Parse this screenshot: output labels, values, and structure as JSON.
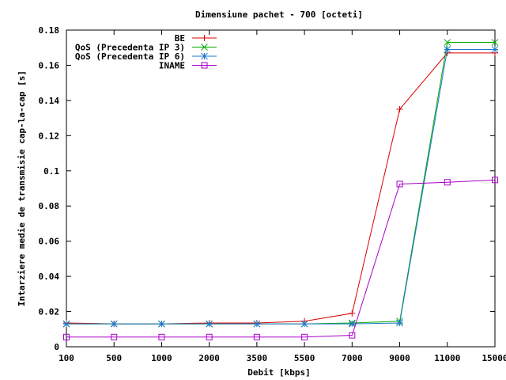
{
  "chart_data": {
    "type": "line",
    "title": "Dimensiune pachet - 700 [octeti]",
    "xlabel": "Debit [kbps]",
    "ylabel": "Intarziere medie de transmisie cap-la-cap [s]",
    "categories": [
      "100",
      "500",
      "1000",
      "2000",
      "3500",
      "5500",
      "7000",
      "9000",
      "11000",
      "15000"
    ],
    "ylim": [
      0,
      0.18
    ],
    "yticks": [
      "0",
      "0.02",
      "0.04",
      "0.06",
      "0.08",
      "0.1",
      "0.12",
      "0.14",
      "0.16",
      "0.18"
    ],
    "grid": false,
    "legend_position": "top-left",
    "series": [
      {
        "name": "BE",
        "color": "#dd0000",
        "marker": "plus",
        "values": [
          0.0135,
          0.013,
          0.013,
          0.0135,
          0.0135,
          0.0145,
          0.019,
          0.135,
          0.167,
          0.167
        ]
      },
      {
        "name": "QoS (Precedenta IP 3)",
        "color": "#00aa00",
        "marker": "cross",
        "values": [
          0.013,
          0.013,
          0.013,
          0.013,
          0.013,
          0.013,
          0.0135,
          0.0145,
          0.173,
          0.173
        ]
      },
      {
        "name": "QoS (Precedenta IP 6)",
        "color": "#1f77cc",
        "marker": "star",
        "values": [
          0.013,
          0.013,
          0.013,
          0.013,
          0.013,
          0.013,
          0.013,
          0.0135,
          0.169,
          0.169
        ]
      },
      {
        "name": "INAME",
        "color": "#aa00cc",
        "marker": "square",
        "values": [
          0.0055,
          0.0055,
          0.0055,
          0.0055,
          0.0055,
          0.0055,
          0.0065,
          0.0925,
          0.0935,
          0.0948
        ]
      }
    ]
  }
}
